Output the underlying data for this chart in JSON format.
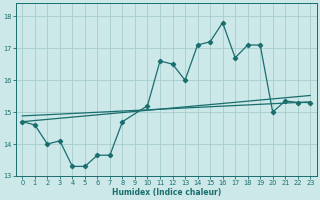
{
  "xlabel": "Humidex (Indice chaleur)",
  "bg_color": "#cce8e8",
  "grid_color": "#a8cccc",
  "line_color": "#1a6e6e",
  "xlim": [
    -0.5,
    23.5
  ],
  "ylim": [
    13.0,
    18.4
  ],
  "yticks": [
    13,
    14,
    15,
    16,
    17,
    18
  ],
  "xticks": [
    0,
    1,
    2,
    3,
    4,
    5,
    6,
    7,
    8,
    9,
    10,
    11,
    12,
    13,
    14,
    15,
    16,
    17,
    18,
    19,
    20,
    21,
    22,
    23
  ],
  "data_x": [
    0,
    1,
    2,
    3,
    4,
    5,
    6,
    7,
    8,
    10,
    11,
    12,
    13,
    14,
    15,
    16,
    17,
    18,
    19,
    20,
    21,
    22,
    23
  ],
  "data_y": [
    14.7,
    14.6,
    14.0,
    14.1,
    13.3,
    13.3,
    13.65,
    13.65,
    14.7,
    15.2,
    16.6,
    16.5,
    16.0,
    17.1,
    17.2,
    17.8,
    16.7,
    17.1,
    17.1,
    15.0,
    15.35,
    15.3,
    15.3
  ],
  "trend1_x": [
    0,
    23
  ],
  "trend1_y": [
    14.88,
    15.32
  ],
  "trend2_x": [
    0,
    23
  ],
  "trend2_y": [
    14.7,
    15.52
  ]
}
